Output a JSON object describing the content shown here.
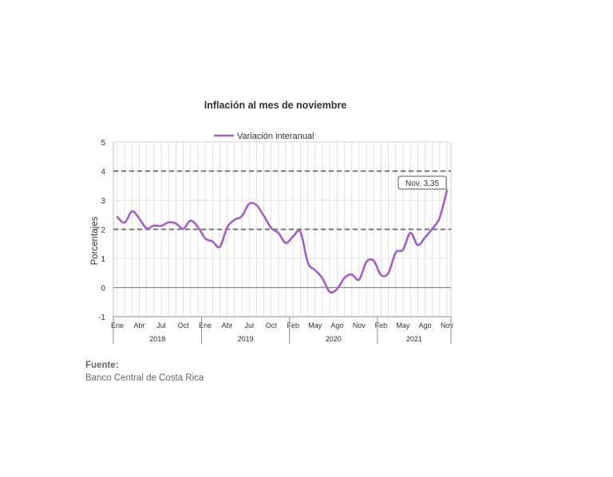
{
  "chart_data": {
    "type": "line",
    "title": "Inflación al mes de noviembre",
    "ylabel": "Porcentajes",
    "ylim": [
      -1,
      5
    ],
    "yticks": [
      -1,
      0,
      1,
      2,
      3,
      4,
      5
    ],
    "legend_position": "top",
    "grid": true,
    "series": [
      {
        "name": "Variación interanual",
        "color": "#a55ec8",
        "values": [
          2.42,
          2.23,
          2.62,
          2.37,
          2.03,
          2.13,
          2.12,
          2.24,
          2.2,
          2.02,
          2.3,
          2.08,
          1.69,
          1.58,
          1.4,
          2.07,
          2.33,
          2.45,
          2.88,
          2.83,
          2.46,
          2.05,
          1.87,
          1.53,
          1.76,
          1.91,
          0.86,
          0.6,
          0.32,
          -0.15,
          -0.05,
          0.33,
          0.45,
          0.27,
          0.88,
          0.92,
          0.43,
          0.5,
          1.2,
          1.3,
          1.88,
          1.46,
          1.72,
          2.02,
          2.4,
          3.35
        ]
      }
    ],
    "reference_lines": [
      2,
      4
    ],
    "month_labels": [
      "Ene",
      "Abr",
      "Jul",
      "Oct",
      "Ene",
      "Abr",
      "Jul",
      "Oct",
      "Feb",
      "May",
      "Ago",
      "Nov",
      "Feb",
      "May",
      "Ago",
      "Nov"
    ],
    "years": [
      "2018",
      "2019",
      "2020",
      "2021"
    ],
    "annotation": "Nov. 3,35"
  },
  "source": {
    "label": "Fuente:",
    "text": "Banco Central de Costa Rica"
  },
  "colors": {
    "line": "#a55ec8",
    "reference": "#666666",
    "grid": "#d9d9d9"
  }
}
